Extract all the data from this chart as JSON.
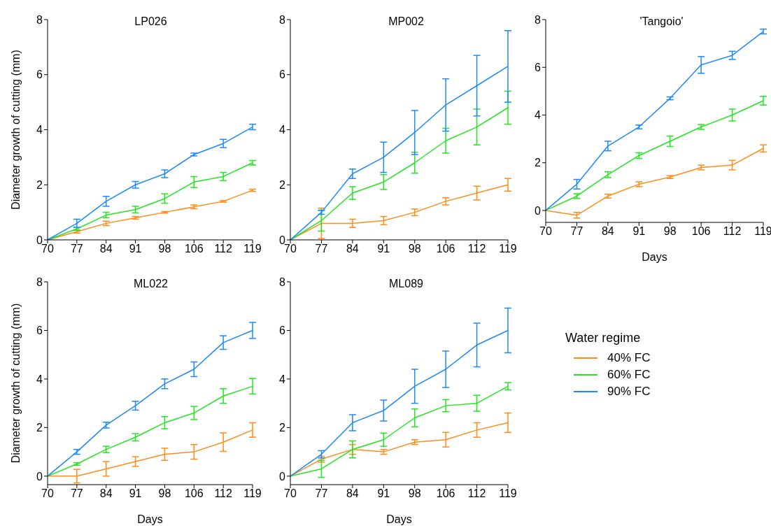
{
  "chart_data": [
    {
      "type": "line",
      "title": "LP026",
      "ylabel": "Diameter growth of cutting (mm)",
      "categories": [
        "70",
        "77",
        "84",
        "91",
        "98",
        "106",
        "112",
        "119"
      ],
      "ylim": [
        0,
        8
      ],
      "yticks": [
        0,
        2,
        4,
        6,
        8
      ],
      "marker": "none",
      "line_style": "solid",
      "series": [
        {
          "color": "#ff8c1a",
          "values": [
            0,
            0.3,
            0.6,
            0.8,
            1.0,
            1.2,
            1.4,
            1.8
          ],
          "errors": [
            null,
            0.05,
            0.08,
            0.05,
            0.03,
            0.07,
            0.03,
            0.04
          ]
        },
        {
          "color": "#22e622",
          "values": [
            0,
            0.4,
            0.9,
            1.1,
            1.5,
            2.1,
            2.3,
            2.8
          ],
          "errors": [
            null,
            0.05,
            0.1,
            0.12,
            0.17,
            0.2,
            0.15,
            0.08
          ]
        },
        {
          "color": "#1e88ff",
          "values": [
            0,
            0.6,
            1.4,
            2.0,
            2.4,
            3.1,
            3.5,
            4.1
          ],
          "errors": [
            null,
            0.15,
            0.18,
            0.12,
            0.14,
            0.05,
            0.15,
            0.1
          ]
        }
      ]
    },
    {
      "type": "line",
      "title": "MP002",
      "categories": [
        "70",
        "77",
        "84",
        "91",
        "98",
        "106",
        "112",
        "119"
      ],
      "ylim": [
        0,
        8
      ],
      "yticks": [
        0,
        2,
        4,
        6,
        8
      ],
      "marker": "none",
      "line_style": "solid",
      "series": [
        {
          "color": "#ff8c1a",
          "values": [
            0,
            0.6,
            0.6,
            0.7,
            1.0,
            1.4,
            1.7,
            2.0
          ],
          "errors": [
            null,
            0.55,
            0.15,
            0.15,
            0.12,
            0.13,
            0.25,
            0.23
          ]
        },
        {
          "color": "#22e622",
          "values": [
            0,
            0.7,
            1.7,
            2.1,
            2.8,
            3.6,
            4.1,
            4.8
          ],
          "errors": [
            null,
            0.38,
            0.23,
            0.27,
            0.38,
            0.45,
            0.65,
            0.6
          ]
        },
        {
          "color": "#1e88ff",
          "values": [
            0,
            1.0,
            2.4,
            3.0,
            3.9,
            4.9,
            5.6,
            6.3
          ],
          "errors": [
            null,
            0.07,
            0.17,
            0.55,
            0.8,
            0.95,
            1.1,
            1.3
          ]
        }
      ]
    },
    {
      "type": "line",
      "title": "'Tangoio'",
      "xlabel": "Days",
      "categories": [
        "70",
        "77",
        "84",
        "91",
        "98",
        "106",
        "112",
        "119"
      ],
      "ylim": [
        -0.5,
        8
      ],
      "yticks": [
        0,
        2,
        4,
        6,
        8
      ],
      "marker": "none",
      "line_style": "solid",
      "series": [
        {
          "color": "#ff8c1a",
          "values": [
            0,
            -0.2,
            0.6,
            1.1,
            1.4,
            1.8,
            1.9,
            2.6
          ],
          "errors": [
            null,
            0.12,
            0.08,
            0.1,
            0.06,
            0.1,
            0.2,
            0.15
          ]
        },
        {
          "color": "#22e622",
          "values": [
            0,
            0.6,
            1.5,
            2.3,
            2.9,
            3.5,
            4.0,
            4.6
          ],
          "errors": [
            null,
            0.1,
            0.12,
            0.12,
            0.22,
            0.1,
            0.25,
            0.18
          ]
        },
        {
          "color": "#1e88ff",
          "values": [
            0,
            1.1,
            2.7,
            3.5,
            4.7,
            6.1,
            6.5,
            7.5
          ],
          "errors": [
            null,
            0.2,
            0.2,
            0.08,
            0.06,
            0.35,
            0.17,
            0.1
          ]
        }
      ]
    },
    {
      "type": "line",
      "title": "ML022",
      "xlabel": "Days",
      "ylabel": "Diameter growth of cutting (mm)",
      "categories": [
        "70",
        "77",
        "84",
        "91",
        "98",
        "106",
        "112",
        "119"
      ],
      "ylim": [
        -0.35,
        8
      ],
      "yticks": [
        0,
        2,
        4,
        6,
        8
      ],
      "marker": "none",
      "line_style": "solid",
      "series": [
        {
          "color": "#ff8c1a",
          "values": [
            0,
            0,
            0.3,
            0.6,
            0.9,
            1.0,
            1.4,
            1.9
          ],
          "errors": [
            null,
            0.28,
            0.3,
            0.2,
            0.25,
            0.3,
            0.38,
            0.3
          ]
        },
        {
          "color": "#22e622",
          "values": [
            0,
            0.5,
            1.1,
            1.6,
            2.2,
            2.6,
            3.3,
            3.7
          ],
          "errors": [
            null,
            0.05,
            0.13,
            0.15,
            0.25,
            0.27,
            0.3,
            0.32
          ]
        },
        {
          "color": "#1e88ff",
          "values": [
            0,
            1.0,
            2.1,
            2.9,
            3.8,
            4.4,
            5.5,
            6.0
          ],
          "errors": [
            null,
            0.1,
            0.12,
            0.18,
            0.2,
            0.3,
            0.28,
            0.33
          ]
        }
      ]
    },
    {
      "type": "line",
      "title": "ML089",
      "xlabel": "Days",
      "legend_title": "Water regime",
      "legend": "right",
      "categories": [
        "70",
        "77",
        "84",
        "91",
        "98",
        "106",
        "112",
        "119"
      ],
      "ylim": [
        -0.35,
        8
      ],
      "yticks": [
        0,
        2,
        4,
        6,
        8
      ],
      "marker": "none",
      "line_style": "solid",
      "series": [
        {
          "name": "40% FC",
          "color": "#ff8c1a",
          "values": [
            0,
            0.7,
            1.1,
            1.0,
            1.4,
            1.5,
            1.9,
            2.2
          ],
          "errors": [
            null,
            0.12,
            0.2,
            0.1,
            0.1,
            0.3,
            0.3,
            0.4
          ]
        },
        {
          "name": "60% FC",
          "color": "#22e622",
          "values": [
            0,
            0.3,
            1.1,
            1.5,
            2.4,
            2.9,
            3.0,
            3.7
          ],
          "errors": [
            null,
            0.35,
            0.35,
            0.27,
            0.37,
            0.25,
            0.33,
            0.15
          ]
        },
        {
          "name": "90% FC",
          "color": "#1e88ff",
          "values": [
            0,
            0.9,
            2.2,
            2.7,
            3.7,
            4.4,
            5.4,
            6.0
          ],
          "errors": [
            null,
            0.15,
            0.33,
            0.43,
            0.7,
            0.75,
            0.9,
            0.92
          ]
        }
      ]
    }
  ]
}
